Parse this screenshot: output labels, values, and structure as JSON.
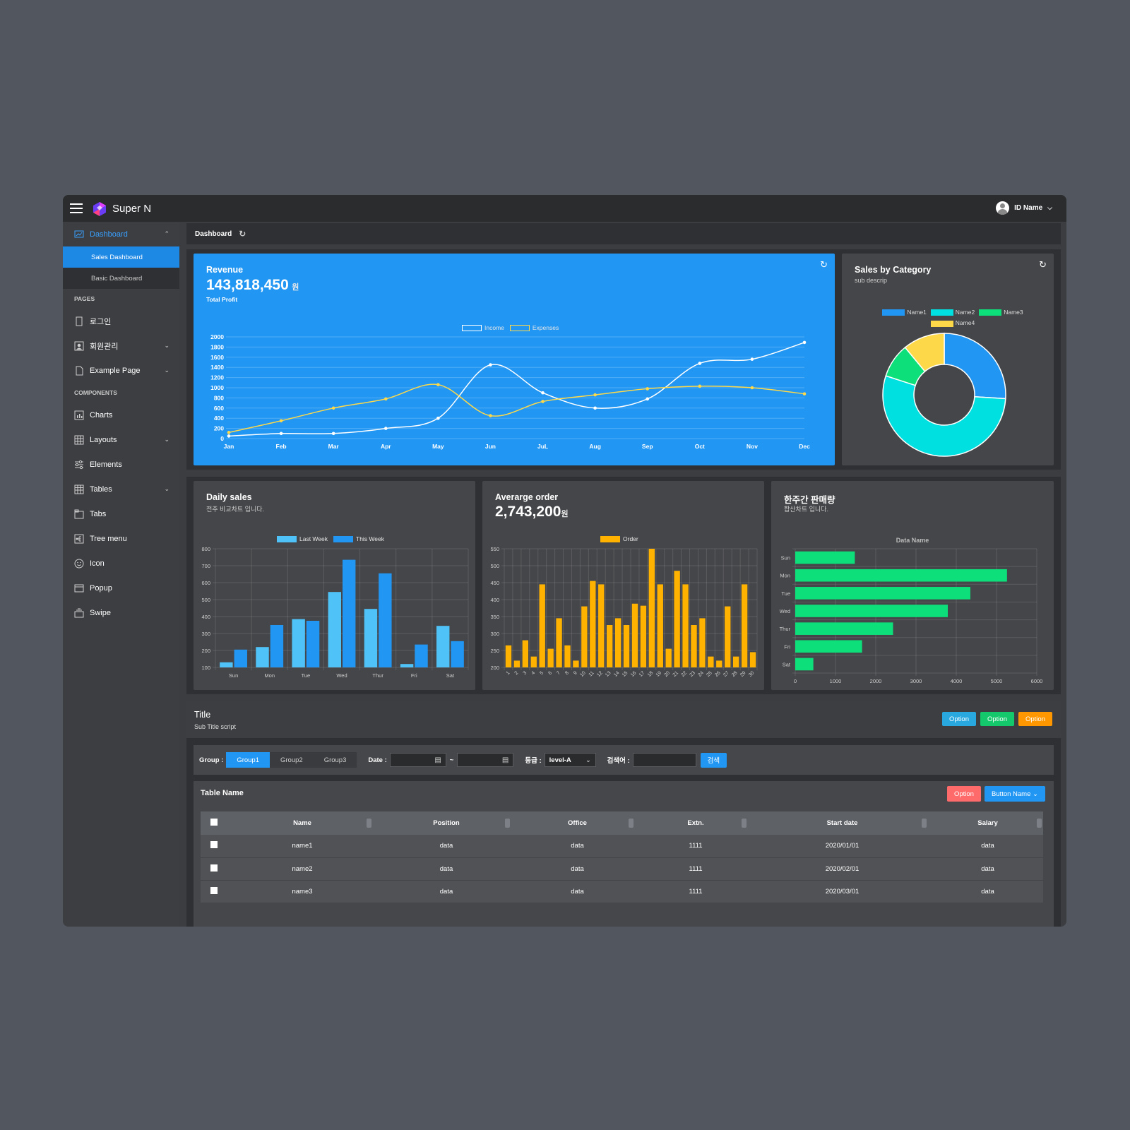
{
  "app": {
    "brand": "Super N",
    "user_name": "ID Name"
  },
  "sidebar": {
    "dashboard": "Dashboard",
    "subs": [
      "Sales Dashboard",
      "Basic Dashboard"
    ],
    "sec_pages": "PAGES",
    "pages": [
      "로그인",
      "회원관리",
      "Example Page"
    ],
    "sec_components": "COMPONENTS",
    "components": [
      "Charts",
      "Layouts",
      "Elements",
      "Tables",
      "Tabs",
      "Tree menu",
      "Icon",
      "Popup",
      "Swipe"
    ]
  },
  "breadcrumb": {
    "title": "Dashboard"
  },
  "revenue": {
    "title": "Revenue",
    "amount": "143,818,450",
    "unit": "원",
    "caption": "Total Profit"
  },
  "sales_cat": {
    "title": "Sales by Category",
    "sub": "sub descrip"
  },
  "daily": {
    "title": "Daily sales",
    "sub": "전주 비교차트 입니다."
  },
  "avg": {
    "title": "Averarge order",
    "amount": "2,743,200",
    "unit": "원"
  },
  "weekly": {
    "title": "한주간 판매량",
    "sub": "합산차트 입니다."
  },
  "section": {
    "title": "Title",
    "sub": "Sub Title script",
    "btn1": "Option",
    "btn2": "Option",
    "btn3": "Option"
  },
  "filter": {
    "group_label": "Group :",
    "groups": [
      "Group1",
      "Group2",
      "Group3"
    ],
    "date_label": "Date :",
    "tilde": "~",
    "grade_label": "등급 :",
    "grade_value": "level-A",
    "search_label": "검색어 :",
    "search_btn": "검색"
  },
  "table": {
    "name": "Table Name",
    "btn_option": "Option",
    "btn_name": "Button Name",
    "headers": [
      "Name",
      "Position",
      "Office",
      "Extn.",
      "Start date",
      "Salary"
    ],
    "rows": [
      [
        "name1",
        "data",
        "data",
        "1111",
        "2020/01/01",
        "data"
      ],
      [
        "name2",
        "data",
        "data",
        "1111",
        "2020/02/01",
        "data"
      ],
      [
        "name3",
        "data",
        "data",
        "1111",
        "2020/03/01",
        "data"
      ]
    ]
  },
  "colors": {
    "blue": "#2196f3",
    "cyan": "#00e0e0",
    "green": "#0de07a",
    "yellow": "#fdd94a",
    "orange": "#ffb300",
    "light_blue": "#4fc3f7",
    "red": "#ff6b6b",
    "option_orange": "#ff9800"
  },
  "chart_data": [
    {
      "type": "line",
      "categories": [
        "Jan",
        "Feb",
        "Mar",
        "Apr",
        "May",
        "Jun",
        "JuL",
        "Aug",
        "Sep",
        "Oct",
        "Nov",
        "Dec"
      ],
      "series": [
        {
          "name": "Income",
          "values": [
            50,
            100,
            100,
            200,
            400,
            1450,
            900,
            600,
            780,
            1480,
            1560,
            1890
          ]
        },
        {
          "name": "Expenses",
          "values": [
            120,
            350,
            600,
            780,
            1060,
            450,
            730,
            860,
            980,
            1030,
            1000,
            880
          ]
        }
      ],
      "yticks": [
        "0",
        "200",
        "400",
        "600",
        "800",
        "1000",
        "1200",
        "1400",
        "1600",
        "1800",
        "2000"
      ],
      "ylim": [
        0,
        2000
      ]
    },
    {
      "type": "pie",
      "labels": [
        "Name1",
        "Name2",
        "Name3",
        "Name4"
      ],
      "values": [
        26,
        54,
        9,
        11
      ]
    },
    {
      "type": "bar",
      "categories": [
        "Sun",
        "Mon",
        "Tue",
        "Wed",
        "Thur",
        "Fri",
        "Sat"
      ],
      "series": [
        {
          "name": "Last Week",
          "values": [
            130,
            220,
            385,
            545,
            445,
            120,
            345
          ]
        },
        {
          "name": "This Week",
          "values": [
            205,
            350,
            375,
            735,
            655,
            235,
            255
          ]
        }
      ],
      "yticks": [
        "100",
        "200",
        "300",
        "400",
        "500",
        "600",
        "700",
        "800"
      ],
      "ylim": [
        100,
        800
      ]
    },
    {
      "type": "bar",
      "categories": [
        "1",
        "2",
        "3",
        "4",
        "5",
        "6",
        "7",
        "8",
        "9",
        "10",
        "11",
        "12",
        "13",
        "14",
        "15",
        "16",
        "17",
        "18",
        "19",
        "20",
        "21",
        "22",
        "23",
        "24",
        "25",
        "26",
        "27",
        "28",
        "29",
        "30"
      ],
      "series": [
        {
          "name": "Order",
          "values": [
            265,
            220,
            280,
            232,
            445,
            255,
            345,
            265,
            220,
            380,
            455,
            445,
            325,
            345,
            325,
            388,
            382,
            550,
            445,
            255,
            485,
            445,
            325,
            345,
            232,
            220,
            380,
            232,
            445,
            245
          ]
        }
      ],
      "yticks": [
        "200",
        "250",
        "300",
        "350",
        "400",
        "450",
        "500",
        "550"
      ],
      "ylim": [
        200,
        550
      ]
    },
    {
      "type": "bar",
      "title": "Data Name",
      "categories": [
        "Sun",
        "Mon",
        "Tue",
        "Wed",
        "Thur",
        "Fri",
        "Sat"
      ],
      "values": [
        1480,
        5260,
        4350,
        3790,
        2430,
        1660,
        450
      ],
      "xticks": [
        "0",
        "1000",
        "2000",
        "3000",
        "4000",
        "5000",
        "6000"
      ],
      "xlim": [
        0,
        6000
      ]
    }
  ]
}
